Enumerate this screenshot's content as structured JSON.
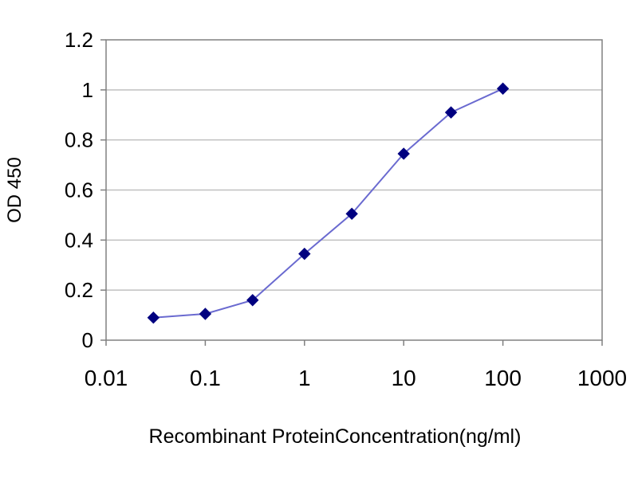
{
  "chart_data": {
    "type": "line",
    "title": "",
    "xlabel": "Recombinant ProteinConcentration(ng/ml)",
    "ylabel": "OD 450",
    "x_scale": "log",
    "xlim": [
      0.01,
      1000
    ],
    "ylim": [
      0,
      1.2
    ],
    "x_ticks": [
      "0.01",
      "0.1",
      "1",
      "10",
      "100",
      "1000"
    ],
    "y_ticks": [
      "0",
      "0.2",
      "0.4",
      "0.6",
      "0.8",
      "1",
      "1.2"
    ],
    "grid": "horizontal",
    "legend": "none",
    "series": [
      {
        "x": [
          0.03,
          0.1,
          0.3,
          1,
          3,
          10,
          30,
          100
        ],
        "y": [
          0.09,
          0.105,
          0.16,
          0.345,
          0.505,
          0.745,
          0.91,
          1.005
        ],
        "color": "#000080",
        "line_color": "#6a6ad0"
      }
    ]
  }
}
